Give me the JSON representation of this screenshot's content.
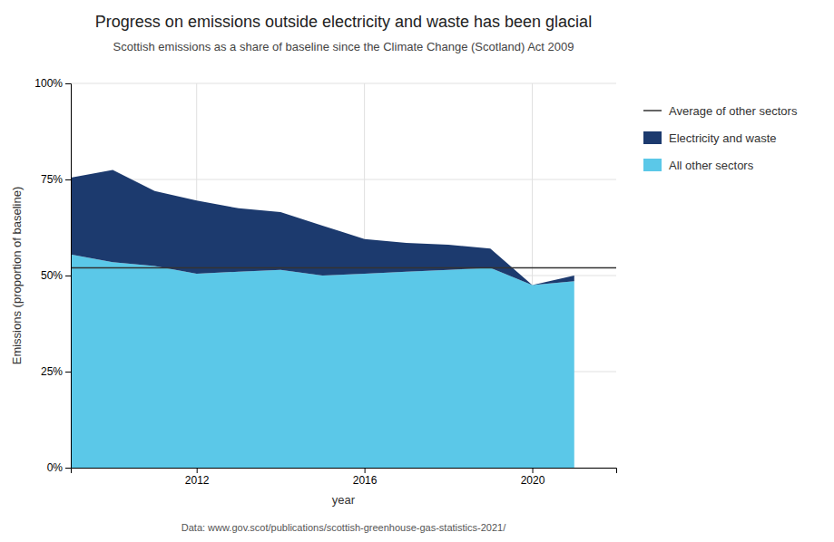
{
  "chart_data": {
    "type": "area",
    "stacked": true,
    "title": "Progress on emissions outside electricity and waste has been glacial",
    "subtitle": "Scottish emissions as a share of baseline since the Climate Change (Scotland) Act 2009",
    "caption": "Data: www.gov.scot/publications/scottish-greenhouse-gas-statistics-2021/",
    "xlabel": "year",
    "ylabel": "Emissions (proportion of baseline)",
    "x": [
      2009,
      2010,
      2011,
      2012,
      2013,
      2014,
      2015,
      2016,
      2017,
      2018,
      2019,
      2020,
      2021
    ],
    "series": [
      {
        "name": "All other sectors",
        "color": "#5BC8E8",
        "values": [
          55.5,
          53.5,
          52.5,
          50.5,
          51.0,
          51.5,
          50.0,
          50.5,
          51.0,
          51.5,
          52.0,
          47.5,
          48.5
        ]
      },
      {
        "name": "Electricity and waste",
        "color": "#1C3A6E",
        "values": [
          20.0,
          24.0,
          19.5,
          19.0,
          16.5,
          15.0,
          13.0,
          9.0,
          7.5,
          6.5,
          5.0,
          0.0,
          1.5
        ]
      }
    ],
    "reference_lines": [
      {
        "name": "Average of other sectors",
        "value": 52.0,
        "color": "#333333"
      }
    ],
    "xlim": [
      2009,
      2022
    ],
    "xticks": [
      2012,
      2016,
      2020
    ],
    "ylim": [
      0,
      100
    ],
    "yticks": [
      {
        "value": 0,
        "label": "0%"
      },
      {
        "value": 25,
        "label": "25%"
      },
      {
        "value": 50,
        "label": "50%"
      },
      {
        "value": 75,
        "label": "75%"
      },
      {
        "value": 100,
        "label": "100%"
      }
    ],
    "grid": true,
    "legend": "right"
  }
}
